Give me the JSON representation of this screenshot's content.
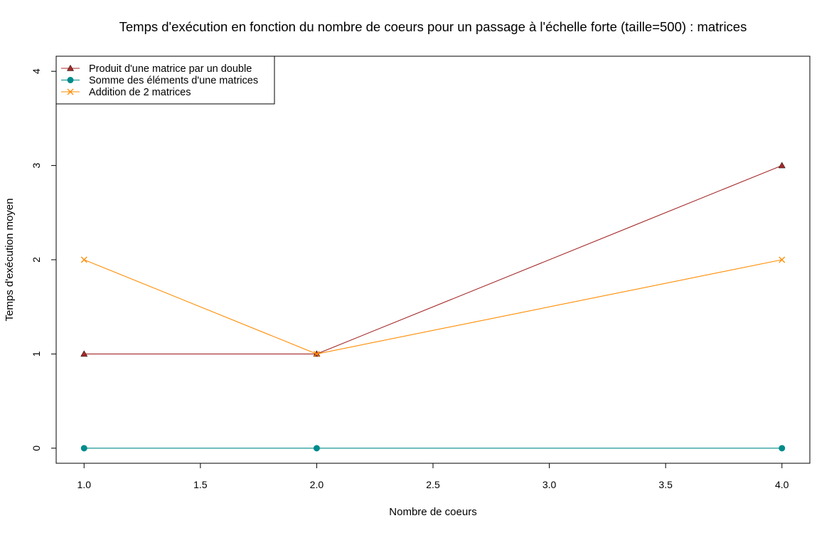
{
  "chart_data": {
    "type": "line",
    "title": "Temps d'exécution en fonction du nombre de coeurs pour un passage à l'échelle forte (taille=500) : matrices",
    "xlabel": "Nombre de coeurs",
    "ylabel": "Temps d'exécution moyen",
    "x": [
      1,
      2,
      4
    ],
    "xlim": [
      0.88,
      4.12
    ],
    "ylim": [
      -0.16,
      4.16
    ],
    "xticks": [
      1.0,
      1.5,
      2.0,
      2.5,
      3.0,
      3.5,
      4.0
    ],
    "xtick_labels": [
      "1.0",
      "1.5",
      "2.0",
      "2.5",
      "3.0",
      "3.5",
      "4.0"
    ],
    "yticks": [
      0,
      1,
      2,
      3,
      4
    ],
    "ytick_labels": [
      "0",
      "1",
      "2",
      "3",
      "4"
    ],
    "grid": false,
    "legend_position": "top-left",
    "series": [
      {
        "name": "Produit d'une matrice par un double",
        "values": [
          1,
          1,
          3
        ],
        "color": "#a52a2a",
        "marker": "triangle"
      },
      {
        "name": "Somme des éléments d'une matrices",
        "values": [
          0,
          0,
          0
        ],
        "color": "#008b8b",
        "marker": "circle"
      },
      {
        "name": "Addition de 2 matrices",
        "values": [
          2,
          1,
          2
        ],
        "color": "#ff8c00",
        "marker": "cross"
      }
    ]
  }
}
